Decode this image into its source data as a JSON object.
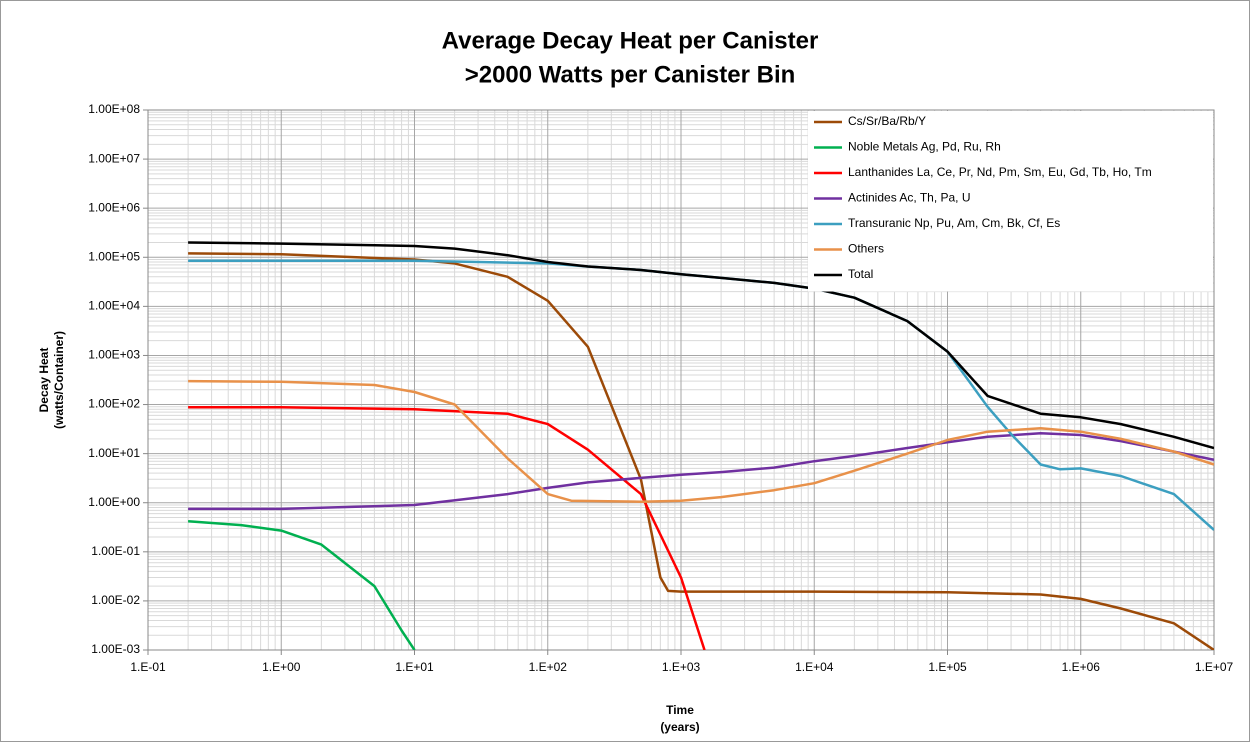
{
  "chart_data": {
    "type": "line",
    "title": "Average Decay Heat per Canister",
    "subtitle": ">2000 Watts per Canister Bin",
    "ylabel": [
      "Decay Heat",
      "(watts/Container)"
    ],
    "xlabel": [
      "Time",
      "(years)"
    ],
    "xscale": "log",
    "yscale": "log",
    "grid": true,
    "minor_grid": true,
    "legend": "upper right",
    "xlim": [
      0.1,
      10000000
    ],
    "ylim": [
      0.001,
      100000000
    ],
    "xticks": [
      {
        "value": 0.1,
        "label": "1.E-01"
      },
      {
        "value": 1,
        "label": "1.E+00"
      },
      {
        "value": 10,
        "label": "1.E+01"
      },
      {
        "value": 100,
        "label": "1.E+02"
      },
      {
        "value": 1000,
        "label": "1.E+03"
      },
      {
        "value": 10000,
        "label": "1.E+04"
      },
      {
        "value": 100000,
        "label": "1.E+05"
      },
      {
        "value": 1000000,
        "label": "1.E+06"
      },
      {
        "value": 10000000,
        "label": "1.E+07"
      }
    ],
    "yticks": [
      {
        "value": 100000000,
        "label": "1.00E+08"
      },
      {
        "value": 10000000,
        "label": "1.00E+07"
      },
      {
        "value": 1000000,
        "label": "1.00E+06"
      },
      {
        "value": 100000,
        "label": "1.00E+05"
      },
      {
        "value": 10000,
        "label": "1.00E+04"
      },
      {
        "value": 1000,
        "label": "1.00E+03"
      },
      {
        "value": 100,
        "label": "1.00E+02"
      },
      {
        "value": 10,
        "label": "1.00E+01"
      },
      {
        "value": 1,
        "label": "1.00E+00"
      },
      {
        "value": 0.1,
        "label": "1.00E-01"
      },
      {
        "value": 0.01,
        "label": "1.00E-02"
      },
      {
        "value": 0.001,
        "label": "1.00E-03"
      }
    ],
    "series": [
      {
        "name": "Cs/Sr/Ba/Rb/Y",
        "color": "#9c4a08",
        "x": [
          0.2,
          1,
          10,
          20,
          50,
          100,
          200,
          500,
          700,
          800,
          1000,
          10000,
          100000,
          500000,
          1000000,
          2000000,
          5000000,
          10000000
        ],
        "values": [
          120000,
          115000,
          90000,
          75000,
          40000,
          13000,
          1500,
          3,
          0.03,
          0.016,
          0.0155,
          0.0155,
          0.015,
          0.0135,
          0.011,
          0.007,
          0.0035,
          0.001
        ]
      },
      {
        "name": "Noble Metals Ag, Pd, Ru, Rh",
        "color": "#00b050",
        "x": [
          0.2,
          0.5,
          1,
          2,
          5,
          8,
          10
        ],
        "values": [
          0.42,
          0.35,
          0.27,
          0.14,
          0.02,
          0.0025,
          0.001
        ]
      },
      {
        "name": "Lanthanides La, Ce, Pr, Nd, Pm, Sm, Eu, Gd, Tb, Ho, Tm",
        "color": "#ff0000",
        "x": [
          0.2,
          1,
          10,
          50,
          100,
          200,
          500,
          1000,
          1500
        ],
        "values": [
          88,
          88,
          80,
          65,
          40,
          12,
          1.5,
          0.03,
          0.001
        ]
      },
      {
        "name": "Actinides Ac, Th, Pa, U",
        "color": "#7030a0",
        "x": [
          0.2,
          1,
          10,
          50,
          100,
          200,
          500,
          1000,
          2000,
          5000,
          10000,
          20000,
          50000,
          100000,
          200000,
          500000,
          1000000,
          2000000,
          5000000,
          10000000
        ],
        "values": [
          0.75,
          0.75,
          0.9,
          1.5,
          2,
          2.6,
          3.2,
          3.7,
          4.2,
          5.2,
          7,
          9,
          13,
          17,
          22,
          26,
          24,
          18,
          11,
          7.5
        ]
      },
      {
        "name": "Transuranic Np, Pu, Am, Cm, Bk, Cf, Es",
        "color": "#3c9fc0",
        "x": [
          0.2,
          1,
          10,
          100,
          200,
          500,
          1000,
          2000,
          5000,
          10000,
          20000,
          50000,
          100000,
          200000,
          300000,
          500000,
          700000,
          1000000,
          2000000,
          5000000,
          10000000
        ],
        "values": [
          85000,
          85000,
          85000,
          75000,
          65000,
          55000,
          45000,
          38000,
          30000,
          23000,
          15000,
          5000,
          1200,
          90,
          25,
          6,
          4.8,
          5,
          3.5,
          1.5,
          0.28
        ]
      },
      {
        "name": "Others",
        "color": "#e8914a",
        "x": [
          0.2,
          1,
          5,
          10,
          20,
          50,
          100,
          150,
          500,
          1000,
          2000,
          5000,
          10000,
          20000,
          50000,
          100000,
          200000,
          500000,
          1000000,
          2000000,
          5000000,
          10000000
        ],
        "values": [
          300,
          290,
          250,
          180,
          100,
          8,
          1.5,
          1.1,
          1.05,
          1.1,
          1.3,
          1.8,
          2.5,
          4.5,
          10,
          19,
          28,
          33,
          28,
          20,
          11,
          6
        ]
      },
      {
        "name": "Total",
        "color": "#000000",
        "x": [
          0.2,
          1,
          10,
          20,
          50,
          100,
          200,
          500,
          1000,
          2000,
          5000,
          10000,
          20000,
          50000,
          100000,
          200000,
          500000,
          1000000,
          2000000,
          5000000,
          10000000
        ],
        "values": [
          200000,
          190000,
          170000,
          150000,
          110000,
          80000,
          65000,
          55000,
          45000,
          38000,
          30000,
          23000,
          15000,
          5000,
          1200,
          150,
          65,
          55,
          40,
          22,
          13
        ]
      }
    ]
  }
}
